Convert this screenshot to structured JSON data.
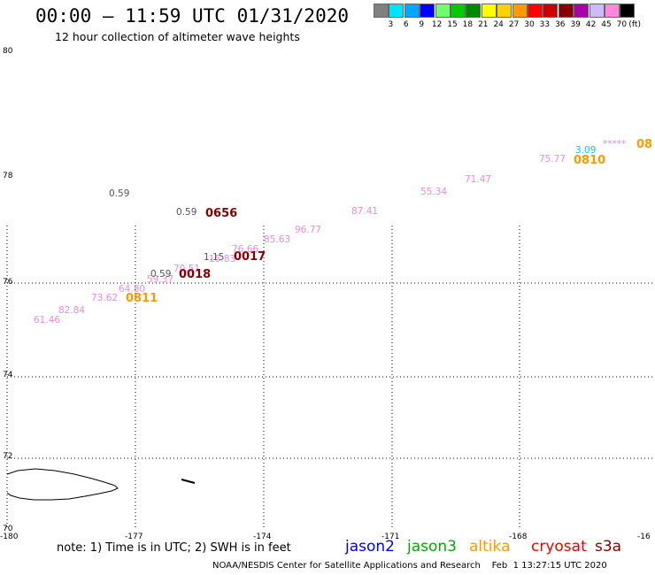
{
  "title": "00:00 – 11:59 UTC 01/31/2020",
  "subtitle": "12 hour collection of altimeter wave heights",
  "legend": {
    "colors": [
      "#808080",
      "#00e5ff",
      "#00a8ff",
      "#0000ff",
      "#6eff6e",
      "#00cc00",
      "#008800",
      "#ffff00",
      "#ffd000",
      "#ff9900",
      "#ff0000",
      "#cc0000",
      "#880000",
      "#aa00aa",
      "#ccbbff",
      "#ff88dd",
      "#000000"
    ],
    "labels": [
      "3",
      "6",
      "9",
      "12",
      "15",
      "18",
      "21",
      "24",
      "27",
      "30",
      "33",
      "36",
      "39",
      "42",
      "45",
      "70"
    ],
    "units": "(ft)"
  },
  "axes": {
    "lat_labels": [
      "80",
      "78",
      "76",
      "74",
      "72",
      "70"
    ],
    "lon_labels": [
      "-180",
      "-177",
      "-174",
      "-171",
      "-168",
      "-16"
    ]
  },
  "chart_data": {
    "type": "scatter",
    "series": [
      {
        "values": [
          {
            "text": "61.46",
            "color": "#ee88dd"
          },
          {
            "text": "82.84",
            "color": "#ee88dd"
          },
          {
            "text": "73.62",
            "color": "#ee88dd"
          },
          {
            "text": "64.80",
            "color": "#ee88dd"
          },
          {
            "text": "59.37",
            "color": "#ee88dd"
          },
          {
            "text": "70.51",
            "color": "#ee88dd"
          },
          {
            "text": "15.83",
            "color": "#ee88dd"
          },
          {
            "text": "76.66",
            "color": "#ee88dd"
          },
          {
            "text": "85.63",
            "color": "#ee88dd"
          },
          {
            "text": "96.77",
            "color": "#ee88dd"
          },
          {
            "text": "87.41",
            "color": "#ee88dd"
          },
          {
            "text": "55.34",
            "color": "#ee88dd"
          },
          {
            "text": "71.47",
            "color": "#ee88dd"
          },
          {
            "text": "75.77",
            "color": "#ee88dd"
          },
          {
            "text": "*****",
            "color": "#ee88dd"
          },
          {
            "text": "3.09",
            "color": "#00ccee"
          },
          {
            "text": "0.59",
            "color": "#555555"
          },
          {
            "text": "0.59",
            "color": "#555555"
          },
          {
            "text": "0.59",
            "color": "#555555"
          },
          {
            "text": "1.15",
            "color": "#555555"
          }
        ]
      }
    ],
    "time_labels": [
      {
        "text": "0656",
        "color": "#880000"
      },
      {
        "text": "0017",
        "color": "#880000"
      },
      {
        "text": "0018",
        "color": "#880000"
      },
      {
        "text": "0811",
        "color": "#ff9900"
      },
      {
        "text": "0810",
        "color": "#ff9900"
      },
      {
        "text": "08",
        "color": "#ff9900"
      }
    ]
  },
  "note": "note: 1) Time is in UTC; 2) SWH is in feet",
  "satellites": [
    {
      "name": "jason2",
      "color": "#0000ff"
    },
    {
      "name": "jason3",
      "color": "#00aa00"
    },
    {
      "name": "altika",
      "color": "#ff9900"
    },
    {
      "name": "cryosat",
      "color": "#ee0000"
    },
    {
      "name": "s3a",
      "color": "#880000"
    }
  ],
  "credit": "NOAA/NESDIS Center for Satellite Applications and Research    Feb  1 13:27:15 UTC 2020"
}
